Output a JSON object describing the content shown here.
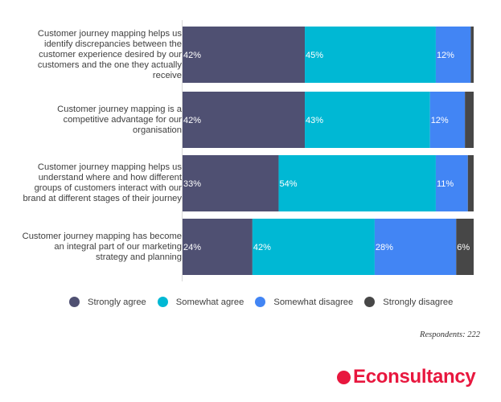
{
  "chart_data": {
    "type": "bar",
    "orientation": "horizontal",
    "stacked": true,
    "title": "",
    "xlabel": "",
    "ylabel": "",
    "xlim": [
      0,
      100
    ],
    "grid": false,
    "legend_position": "bottom",
    "categories": [
      "Customer journey mapping helps us identify discrepancies between the customer experience desired by our customers and the one they actually receive",
      "Customer journey mapping is a competitive advantage for our organisation",
      "Customer journey mapping helps us understand where and how different groups of customers interact with our brand at different stages of their journey",
      "Customer journey mapping has become an integral part of our marketing strategy and planning"
    ],
    "series": [
      {
        "name": "Strongly agree",
        "color": "#4f5072",
        "values": [
          42,
          42,
          33,
          24
        ],
        "labels": [
          "42%",
          "42%",
          "33%",
          "24%"
        ]
      },
      {
        "name": "Somewhat agree",
        "color": "#00b8d4",
        "values": [
          45,
          43,
          54,
          42
        ],
        "labels": [
          "45%",
          "43%",
          "54%",
          "42%"
        ]
      },
      {
        "name": "Somewhat disagree",
        "color": "#4285f4",
        "values": [
          12,
          12,
          11,
          28
        ],
        "labels": [
          "12%",
          "12%",
          "11%",
          "28%"
        ]
      },
      {
        "name": "Strongly disagree",
        "color": "#474747",
        "values": [
          1,
          3,
          2,
          6
        ],
        "labels": [
          "",
          "",
          "",
          "6%"
        ]
      }
    ]
  },
  "category_lines": [
    [
      "Customer journey mapping helps us",
      "identify discrepancies between the",
      "customer experience desired by our",
      "customers and the one they actually",
      "receive"
    ],
    [
      "Customer journey mapping is a",
      "competitive advantage for our",
      "organisation"
    ],
    [
      "Customer journey mapping helps us",
      "understand where and how different",
      "groups of customers interact with our",
      "brand at different stages of their journey"
    ],
    [
      "Customer journey mapping has become",
      "an integral part of our marketing",
      "strategy and planning"
    ]
  ],
  "footer": {
    "respondents": "Respondents: 222"
  },
  "brand": {
    "name": "Econsultancy",
    "color": "#e8173e"
  }
}
